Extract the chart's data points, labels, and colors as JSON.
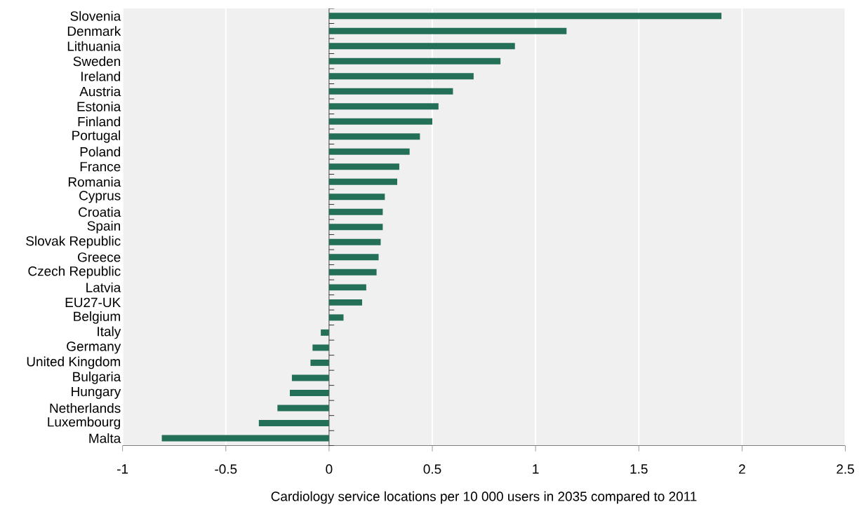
{
  "chart_data": {
    "type": "bar",
    "orientation": "horizontal",
    "xlabel": "Cardiology service locations per 10 000 users in 2035 compared to 2011",
    "categories": [
      "Slovenia",
      "Denmark",
      "Lithuania",
      "Sweden",
      "Ireland",
      "Austria",
      "Estonia",
      "Finland",
      "Portugal",
      "Poland",
      "France",
      "Romania",
      "Cyprus",
      "Croatia",
      "Spain",
      "Slovak Republic",
      "Greece",
      "Czech Republic",
      "Latvia",
      "EU27-UK",
      "Belgium",
      "Italy",
      "Germany",
      "United Kingdom",
      "Bulgaria",
      "Hungary",
      "Netherlands",
      "Luxembourg",
      "Malta"
    ],
    "values": [
      1.9,
      1.15,
      0.9,
      0.83,
      0.7,
      0.6,
      0.53,
      0.5,
      0.44,
      0.39,
      0.34,
      0.33,
      0.27,
      0.26,
      0.26,
      0.25,
      0.24,
      0.23,
      0.18,
      0.16,
      0.07,
      -0.04,
      -0.08,
      -0.09,
      -0.18,
      -0.19,
      -0.25,
      -0.34,
      -0.81
    ],
    "color": "#236f57",
    "xlim": [
      -1,
      2.5
    ],
    "xticks": [
      -1,
      -0.5,
      0,
      0.5,
      1,
      1.5,
      2,
      2.5
    ],
    "grid": "x"
  }
}
